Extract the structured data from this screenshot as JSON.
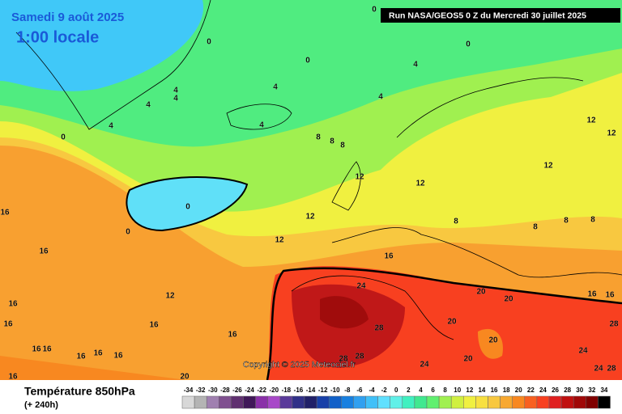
{
  "header": {
    "date": "Samedi 9 août 2025",
    "time": "1:00 locale",
    "run": "Run NASA/GEOS5 0 Z du Mercredi 30 juillet 2025"
  },
  "map": {
    "copyright": "Copyright © 2025 Meteociel.fr",
    "contour_labels": [
      0,
      0,
      0,
      0,
      4,
      4,
      4,
      4,
      4,
      4,
      0,
      4,
      4,
      8,
      8,
      8,
      12,
      12,
      0,
      0,
      16,
      16,
      12,
      12,
      16,
      12,
      16,
      16,
      16,
      16,
      16,
      16,
      16,
      16,
      16,
      16,
      20,
      24,
      28,
      28,
      28,
      24,
      20,
      20,
      20,
      20,
      20,
      24,
      24,
      28,
      28,
      16,
      16,
      12,
      12,
      12,
      8,
      8,
      8,
      8
    ]
  },
  "legend": {
    "title": "Température 850hPa",
    "lead": "(+ 240h)",
    "levels": [
      -34,
      -32,
      -30,
      -28,
      -26,
      -24,
      -22,
      -20,
      -18,
      -16,
      -14,
      -12,
      -10,
      -8,
      -6,
      -4,
      -2,
      0,
      2,
      4,
      6,
      8,
      10,
      12,
      14,
      16,
      18,
      20,
      22,
      24,
      26,
      28,
      30,
      32,
      34
    ],
    "colors": [
      "#d8d8d8",
      "#b4b4b4",
      "#a080b0",
      "#805090",
      "#603070",
      "#401858",
      "#8a30a8",
      "#a848c8",
      "#5a3a9a",
      "#303088",
      "#202068",
      "#1840a8",
      "#1060c8",
      "#1880e0",
      "#30a0f0",
      "#40c0f8",
      "#60e0ff",
      "#60f0e8",
      "#40f0c0",
      "#40e890",
      "#60f070",
      "#a0f050",
      "#d0f040",
      "#f0f040",
      "#f8e040",
      "#f8c840",
      "#f8a830",
      "#f88820",
      "#f86020",
      "#f84020",
      "#e02020",
      "#c01010",
      "#a00808",
      "#800000",
      "#000000"
    ]
  }
}
